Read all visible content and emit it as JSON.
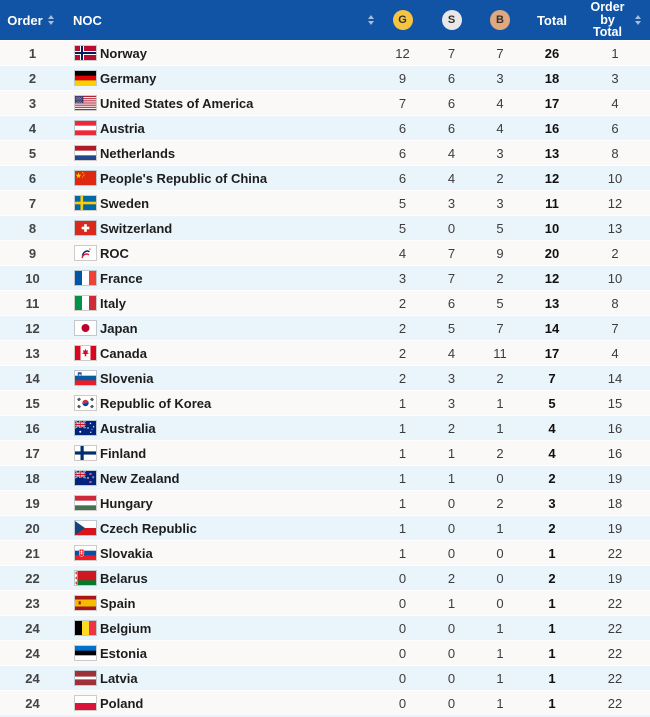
{
  "table": {
    "columns": {
      "order": "Order",
      "noc": "NOC",
      "gold": "G",
      "silver": "S",
      "bronze": "B",
      "total": "Total",
      "order_by_total": "Order by Total"
    },
    "colors": {
      "header_bg": "#1153a4",
      "gold_circle": "#f5c542",
      "silver_circle": "#e8e8ea",
      "bronze_circle": "#dfa87f",
      "row_alt_blue": "#e9f4fb",
      "row_alt_white": "#faf9f7"
    },
    "rows": [
      {
        "order": 1,
        "noc": "Norway",
        "flag": "norway",
        "gold": 12,
        "silver": 7,
        "bronze": 7,
        "total": 26,
        "order_by_total": 1
      },
      {
        "order": 2,
        "noc": "Germany",
        "flag": "germany",
        "gold": 9,
        "silver": 6,
        "bronze": 3,
        "total": 18,
        "order_by_total": 3
      },
      {
        "order": 3,
        "noc": "United States of America",
        "flag": "usa",
        "gold": 7,
        "silver": 6,
        "bronze": 4,
        "total": 17,
        "order_by_total": 4
      },
      {
        "order": 4,
        "noc": "Austria",
        "flag": "austria",
        "gold": 6,
        "silver": 6,
        "bronze": 4,
        "total": 16,
        "order_by_total": 6
      },
      {
        "order": 5,
        "noc": "Netherlands",
        "flag": "netherlands",
        "gold": 6,
        "silver": 4,
        "bronze": 3,
        "total": 13,
        "order_by_total": 8
      },
      {
        "order": 6,
        "noc": "People's Republic of China",
        "flag": "china",
        "gold": 6,
        "silver": 4,
        "bronze": 2,
        "total": 12,
        "order_by_total": 10
      },
      {
        "order": 7,
        "noc": "Sweden",
        "flag": "sweden",
        "gold": 5,
        "silver": 3,
        "bronze": 3,
        "total": 11,
        "order_by_total": 12
      },
      {
        "order": 8,
        "noc": "Switzerland",
        "flag": "switzerland",
        "gold": 5,
        "silver": 0,
        "bronze": 5,
        "total": 10,
        "order_by_total": 13
      },
      {
        "order": 9,
        "noc": "ROC",
        "flag": "roc",
        "gold": 4,
        "silver": 7,
        "bronze": 9,
        "total": 20,
        "order_by_total": 2
      },
      {
        "order": 10,
        "noc": "France",
        "flag": "france",
        "gold": 3,
        "silver": 7,
        "bronze": 2,
        "total": 12,
        "order_by_total": 10
      },
      {
        "order": 11,
        "noc": "Italy",
        "flag": "italy",
        "gold": 2,
        "silver": 6,
        "bronze": 5,
        "total": 13,
        "order_by_total": 8
      },
      {
        "order": 12,
        "noc": "Japan",
        "flag": "japan",
        "gold": 2,
        "silver": 5,
        "bronze": 7,
        "total": 14,
        "order_by_total": 7
      },
      {
        "order": 13,
        "noc": "Canada",
        "flag": "canada",
        "gold": 2,
        "silver": 4,
        "bronze": 11,
        "total": 17,
        "order_by_total": 4
      },
      {
        "order": 14,
        "noc": "Slovenia",
        "flag": "slovenia",
        "gold": 2,
        "silver": 3,
        "bronze": 2,
        "total": 7,
        "order_by_total": 14
      },
      {
        "order": 15,
        "noc": "Republic of Korea",
        "flag": "korea",
        "gold": 1,
        "silver": 3,
        "bronze": 1,
        "total": 5,
        "order_by_total": 15
      },
      {
        "order": 16,
        "noc": "Australia",
        "flag": "australia",
        "gold": 1,
        "silver": 2,
        "bronze": 1,
        "total": 4,
        "order_by_total": 16
      },
      {
        "order": 17,
        "noc": "Finland",
        "flag": "finland",
        "gold": 1,
        "silver": 1,
        "bronze": 2,
        "total": 4,
        "order_by_total": 16
      },
      {
        "order": 18,
        "noc": "New Zealand",
        "flag": "newzealand",
        "gold": 1,
        "silver": 1,
        "bronze": 0,
        "total": 2,
        "order_by_total": 19
      },
      {
        "order": 19,
        "noc": "Hungary",
        "flag": "hungary",
        "gold": 1,
        "silver": 0,
        "bronze": 2,
        "total": 3,
        "order_by_total": 18
      },
      {
        "order": 20,
        "noc": "Czech Republic",
        "flag": "czech",
        "gold": 1,
        "silver": 0,
        "bronze": 1,
        "total": 2,
        "order_by_total": 19
      },
      {
        "order": 21,
        "noc": "Slovakia",
        "flag": "slovakia",
        "gold": 1,
        "silver": 0,
        "bronze": 0,
        "total": 1,
        "order_by_total": 22
      },
      {
        "order": 22,
        "noc": "Belarus",
        "flag": "belarus",
        "gold": 0,
        "silver": 2,
        "bronze": 0,
        "total": 2,
        "order_by_total": 19
      },
      {
        "order": 23,
        "noc": "Spain",
        "flag": "spain",
        "gold": 0,
        "silver": 1,
        "bronze": 0,
        "total": 1,
        "order_by_total": 22
      },
      {
        "order": 24,
        "noc": "Belgium",
        "flag": "belgium",
        "gold": 0,
        "silver": 0,
        "bronze": 1,
        "total": 1,
        "order_by_total": 22
      },
      {
        "order": 24,
        "noc": "Estonia",
        "flag": "estonia",
        "gold": 0,
        "silver": 0,
        "bronze": 1,
        "total": 1,
        "order_by_total": 22
      },
      {
        "order": 24,
        "noc": "Latvia",
        "flag": "latvia",
        "gold": 0,
        "silver": 0,
        "bronze": 1,
        "total": 1,
        "order_by_total": 22
      },
      {
        "order": 24,
        "noc": "Poland",
        "flag": "poland",
        "gold": 0,
        "silver": 0,
        "bronze": 1,
        "total": 1,
        "order_by_total": 22
      }
    ]
  }
}
